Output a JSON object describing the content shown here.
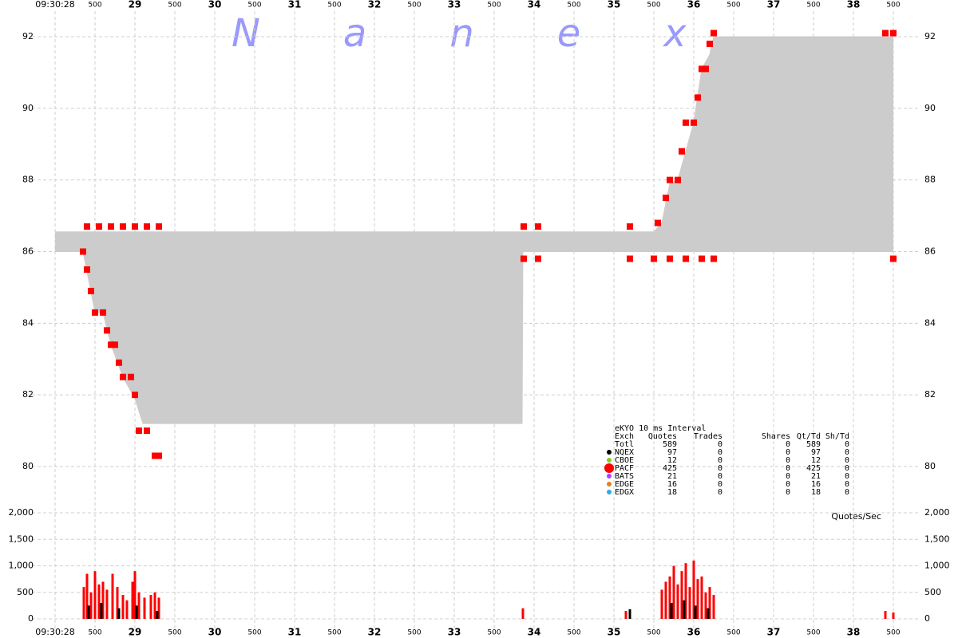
{
  "chart_data": {
    "type": "nbbo",
    "watermark": "Nanex",
    "volume_label": "Quotes/Sec",
    "xlim": [
      28,
      38.5
    ],
    "xticks": [
      {
        "value": 28,
        "label": "09:30:28"
      },
      {
        "value": 28.5,
        "label": "500"
      },
      29,
      {
        "value": 29.5,
        "label": "500"
      },
      30,
      {
        "value": 30.5,
        "label": "500"
      },
      31,
      {
        "value": 31.5,
        "label": "500"
      },
      32,
      {
        "value": 32.5,
        "label": "500"
      },
      33,
      {
        "value": 33.5,
        "label": "500"
      },
      34,
      {
        "value": 34.5,
        "label": "500"
      },
      35,
      {
        "value": 35.5,
        "label": "500"
      },
      36,
      {
        "value": 36.5,
        "label": "500"
      },
      37,
      {
        "value": 37.5,
        "label": "500"
      },
      38,
      {
        "value": 38.5,
        "label": "500"
      }
    ],
    "ylim": [
      80,
      92
    ],
    "yticks": [
      80,
      82,
      84,
      86,
      88,
      90,
      92
    ],
    "y2lim": [
      0,
      2000
    ],
    "y2ticks": [
      0,
      500,
      {
        "value": 1000,
        "label": "1,000"
      },
      {
        "value": 1500,
        "label": "1,500"
      },
      {
        "value": 2000,
        "label": "2,000"
      }
    ],
    "spread_color": "#cccccc",
    "upper": {
      "x": [
        28,
        35.5,
        35.6,
        35.7,
        35.8,
        35.9,
        36.0,
        36.1,
        36.2,
        36.25,
        38.5
      ],
      "values": [
        86.55,
        86.55,
        86.8,
        87.9,
        88.0,
        88.8,
        89.6,
        91.1,
        91.5,
        92,
        92
      ]
    },
    "lower": {
      "x": [
        28,
        28.35,
        28.5,
        28.6,
        28.7,
        28.85,
        29.0,
        29.1,
        29.3,
        33.85,
        33.86,
        38.5
      ],
      "values": [
        86,
        86,
        84.3,
        84.3,
        83.4,
        82.5,
        81.9,
        81.2,
        81.2,
        81.2,
        86,
        86
      ]
    },
    "quotes": {
      "color": "#ff0000",
      "x": [
        28.35,
        28.4,
        28.45,
        28.5,
        28.6,
        28.65,
        28.7,
        28.75,
        28.8,
        28.85,
        28.95,
        29.0,
        29.05,
        29.15,
        29.25,
        29.3,
        28.4,
        28.55,
        28.7,
        28.85,
        29.0,
        29.15,
        29.3,
        33.87,
        34.05,
        35.2,
        38.4,
        38.5,
        33.87,
        34.05,
        35.2,
        35.5,
        35.7,
        35.9,
        36.1,
        36.25,
        38.5,
        35.55,
        35.65,
        35.7,
        35.8,
        35.85,
        35.9,
        36.0,
        36.05,
        36.1,
        36.15,
        36.2,
        36.25
      ],
      "values": [
        86,
        85.5,
        84.9,
        84.3,
        84.3,
        83.8,
        83.4,
        83.4,
        82.9,
        82.5,
        82.5,
        82.0,
        81.0,
        81.0,
        80.3,
        80.3,
        86.7,
        86.7,
        86.7,
        86.7,
        86.7,
        86.7,
        86.7,
        86.7,
        86.7,
        86.7,
        92.1,
        92.1,
        85.8,
        85.8,
        85.8,
        85.8,
        85.8,
        85.8,
        85.8,
        85.8,
        85.8,
        86.8,
        87.5,
        88.0,
        88.0,
        88.8,
        89.6,
        89.6,
        90.3,
        91.1,
        91.1,
        91.8,
        92.1
      ]
    },
    "volume": [
      {
        "color": "#ff0000",
        "x": [
          28.36,
          28.4,
          28.45,
          28.5,
          28.55,
          28.6,
          28.65,
          28.72,
          28.78,
          28.85,
          28.9,
          28.97,
          29.0,
          29.05,
          29.12,
          29.2,
          29.25,
          29.3,
          33.86,
          35.15,
          35.6,
          35.65,
          35.7,
          35.75,
          35.8,
          35.85,
          35.9,
          35.95,
          36.0,
          36.05,
          36.1,
          36.15,
          36.2,
          36.25,
          38.4,
          38.5
        ],
        "values": [
          600,
          850,
          500,
          900,
          650,
          700,
          550,
          850,
          600,
          450,
          350,
          700,
          900,
          500,
          400,
          450,
          500,
          400,
          200,
          150,
          550,
          700,
          800,
          1000,
          650,
          900,
          1050,
          600,
          1100,
          750,
          800,
          500,
          600,
          450,
          150,
          120
        ]
      },
      {
        "color": "#000000",
        "x": [
          28.42,
          28.58,
          28.8,
          29.02,
          29.28,
          35.2,
          35.72,
          35.88,
          36.02,
          36.18
        ],
        "values": [
          250,
          300,
          200,
          250,
          150,
          180,
          300,
          350,
          250,
          200
        ]
      }
    ],
    "legend_table": {
      "title": "eKYO 10 ms Interval",
      "header": [
        "Exch",
        "Quotes",
        "Trades",
        "Shares",
        "Qt/Td",
        "Sh/Td"
      ],
      "rows": [
        {
          "color": null,
          "cells": [
            "Totl",
            "589",
            "0",
            "0",
            "589",
            "0"
          ]
        },
        {
          "color": "#000000",
          "cells": [
            "NQEX",
            "97",
            "0",
            "0",
            "97",
            "0"
          ]
        },
        {
          "color": "#88cc22",
          "cells": [
            "CBOE",
            "12",
            "0",
            "0",
            "12",
            "0"
          ]
        },
        {
          "color": "#ff0000",
          "cells": [
            "PACF",
            "425",
            "0",
            "0",
            "425",
            "0"
          ]
        },
        {
          "color": "#aa44ff",
          "cells": [
            "BATS",
            "21",
            "0",
            "0",
            "21",
            "0"
          ]
        },
        {
          "color": "#e08020",
          "cells": [
            "EDGE",
            "16",
            "0",
            "0",
            "16",
            "0"
          ]
        },
        {
          "color": "#33aadd",
          "cells": [
            "EDGX",
            "18",
            "0",
            "0",
            "18",
            "0"
          ]
        }
      ]
    }
  }
}
